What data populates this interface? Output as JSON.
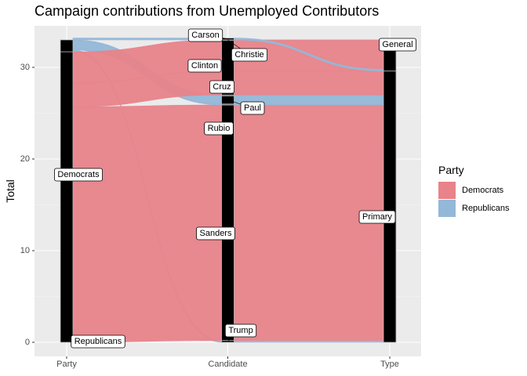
{
  "chart_data": {
    "type": "alluvial",
    "title": "Campaign contributions from Unemployed Contributors",
    "xlabel": "",
    "ylabel": "Total",
    "axes": [
      "Party",
      "Candidate",
      "Type"
    ],
    "ylim": [
      0,
      33
    ],
    "yticks": [
      0,
      10,
      20,
      30
    ],
    "grid": true,
    "legend": {
      "title": "Party",
      "placement": "right",
      "entries": [
        {
          "name": "Democrats",
          "color": "#e8838a"
        },
        {
          "name": "Republicans",
          "color": "#94b8d8"
        }
      ]
    },
    "strata": {
      "Party": [
        {
          "label": "Democrats",
          "value": 31.7
        },
        {
          "label": "Republicans",
          "value": 1.3
        }
      ],
      "Candidate": [
        {
          "label": "Trump",
          "value": 0.2
        },
        {
          "label": "Sanders",
          "value": 25.7
        },
        {
          "label": "Rubio",
          "value": 0.1
        },
        {
          "label": "Paul",
          "value": 0.9
        },
        {
          "label": "Cruz",
          "value": 0.1
        },
        {
          "label": "Clinton",
          "value": 6.0
        },
        {
          "label": "Christie",
          "value": 0.0
        },
        {
          "label": "Carson",
          "value": 0.2
        }
      ],
      "Type": [
        {
          "label": "Primary",
          "value": 29.6
        },
        {
          "label": "General",
          "value": 3.4
        }
      ]
    },
    "flows": [
      {
        "party": "Republicans",
        "candidate": "Trump",
        "type": "Primary",
        "value": 0.2
      },
      {
        "party": "Democrats",
        "candidate": "Sanders",
        "type": "Primary",
        "value": 25.7
      },
      {
        "party": "Republicans",
        "candidate": "Rubio",
        "type": "Primary",
        "value": 0.1
      },
      {
        "party": "Republicans",
        "candidate": "Paul",
        "type": "Primary",
        "value": 0.9
      },
      {
        "party": "Republicans",
        "candidate": "Cruz",
        "type": "Primary",
        "value": 0.1
      },
      {
        "party": "Democrats",
        "candidate": "Clinton",
        "type": "Primary",
        "value": 2.6
      },
      {
        "party": "Democrats",
        "candidate": "Clinton",
        "type": "General",
        "value": 3.4
      },
      {
        "party": "Republicans",
        "candidate": "Carson",
        "type": "Primary",
        "value": 0.2
      }
    ]
  }
}
